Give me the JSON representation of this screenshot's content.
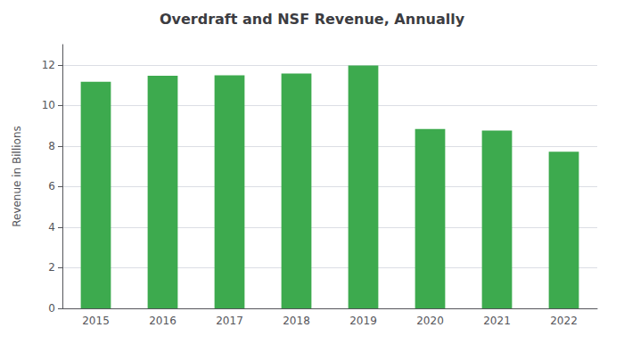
{
  "chart_data": {
    "type": "bar",
    "title": "Overdraft and NSF Revenue, Annually",
    "categories": [
      "2015",
      "2016",
      "2017",
      "2018",
      "2019",
      "2020",
      "2021",
      "2022"
    ],
    "values": [
      11.17,
      11.46,
      11.48,
      11.57,
      11.97,
      8.84,
      8.76,
      7.72
    ],
    "color": "#3daa4e",
    "ylabel": "Revenue in Billions",
    "ylim": [
      0,
      13
    ],
    "yticks": [
      0,
      2,
      4,
      6,
      8,
      10,
      12
    ],
    "grid": true
  }
}
